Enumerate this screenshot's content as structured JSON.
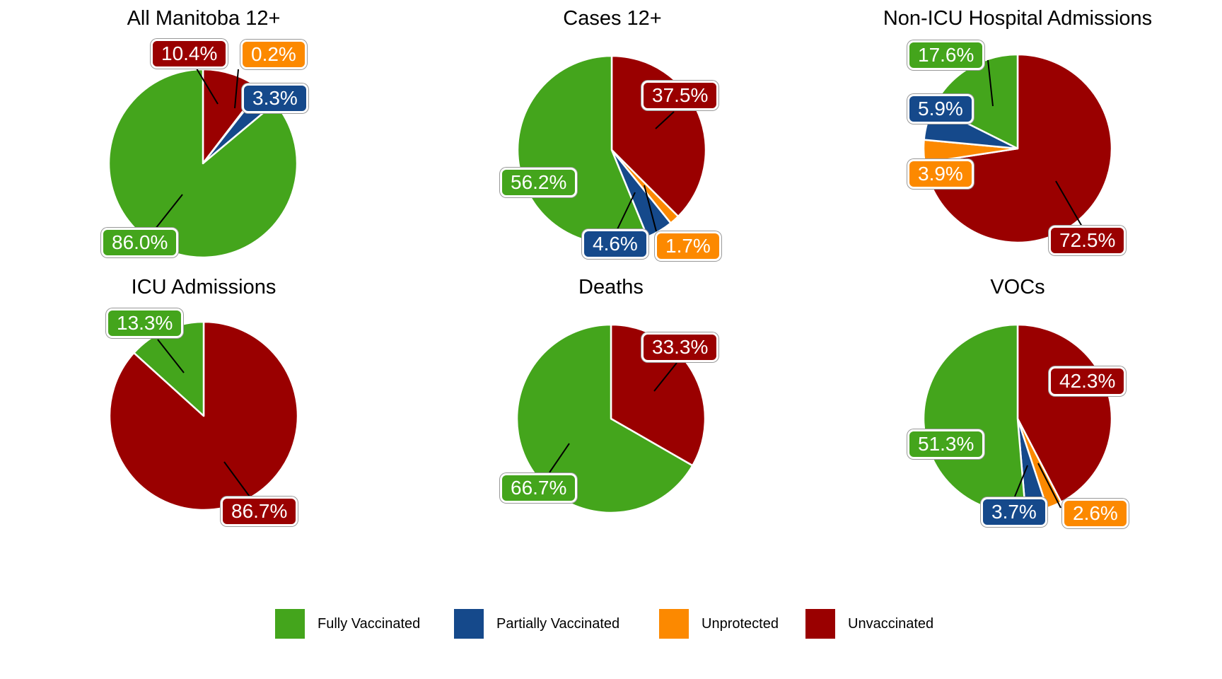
{
  "background": "#FFFFFF",
  "colors": {
    "fully_vaccinated": "#44A51C",
    "partially_vaccinated": "#15498B",
    "unprotected": "#FC8900",
    "unvaccinated": "#9A0000"
  },
  "chart_data": [
    {
      "type": "pie",
      "title": "All Manitoba 12+",
      "order": "clockwise-from-top",
      "categories": [
        "Unvaccinated",
        "Unprotected",
        "Partially Vaccinated",
        "Fully Vaccinated"
      ],
      "values": [
        10.4,
        0.2,
        3.3,
        86.0
      ],
      "labels": [
        "10.4%",
        "0.2%",
        "3.3%",
        "86.0%"
      ],
      "colors": [
        "#9A0000",
        "#FC8900",
        "#15498B",
        "#44A51C"
      ]
    },
    {
      "type": "pie",
      "title": "Cases 12+",
      "order": "clockwise-from-top",
      "categories": [
        "Unvaccinated",
        "Unprotected",
        "Partially Vaccinated",
        "Fully Vaccinated"
      ],
      "values": [
        37.5,
        1.7,
        4.6,
        56.2
      ],
      "labels": [
        "37.5%",
        "1.7%",
        "4.6%",
        "56.2%"
      ],
      "colors": [
        "#9A0000",
        "#FC8900",
        "#15498B",
        "#44A51C"
      ]
    },
    {
      "type": "pie",
      "title": "Non-ICU Hospital Admissions",
      "order": "clockwise-from-top",
      "categories": [
        "Unvaccinated",
        "Unprotected",
        "Partially Vaccinated",
        "Fully Vaccinated"
      ],
      "values": [
        72.5,
        3.9,
        5.9,
        17.6
      ],
      "labels": [
        "72.5%",
        "3.9%",
        "5.9%",
        "17.6%"
      ],
      "colors": [
        "#9A0000",
        "#FC8900",
        "#15498B",
        "#44A51C"
      ]
    },
    {
      "type": "pie",
      "title": "ICU Admissions",
      "order": "clockwise-from-top",
      "categories": [
        "Unvaccinated",
        "Fully Vaccinated"
      ],
      "values": [
        86.7,
        13.3
      ],
      "labels": [
        "86.7%",
        "13.3%"
      ],
      "colors": [
        "#9A0000",
        "#44A51C"
      ]
    },
    {
      "type": "pie",
      "title": "Deaths",
      "order": "clockwise-from-top",
      "categories": [
        "Unvaccinated",
        "Fully Vaccinated"
      ],
      "values": [
        33.3,
        66.7
      ],
      "labels": [
        "33.3%",
        "66.7%"
      ],
      "colors": [
        "#9A0000",
        "#44A51C"
      ]
    },
    {
      "type": "pie",
      "title": "VOCs",
      "order": "clockwise-from-top",
      "categories": [
        "Unvaccinated",
        "Unprotected",
        "Partially Vaccinated",
        "Fully Vaccinated"
      ],
      "values": [
        42.3,
        2.6,
        3.7,
        51.3
      ],
      "labels": [
        "42.3%",
        "2.6%",
        "3.7%",
        "51.3%"
      ],
      "colors": [
        "#9A0000",
        "#FC8900",
        "#15498B",
        "#44A51C"
      ]
    }
  ],
  "legend": {
    "items": [
      {
        "label": "Fully Vaccinated",
        "color": "#44A51C"
      },
      {
        "label": "Partially Vaccinated",
        "color": "#15498B"
      },
      {
        "label": "Unprotected",
        "color": "#FC8900"
      },
      {
        "label": "Unvaccinated",
        "color": "#9A0000"
      }
    ]
  }
}
